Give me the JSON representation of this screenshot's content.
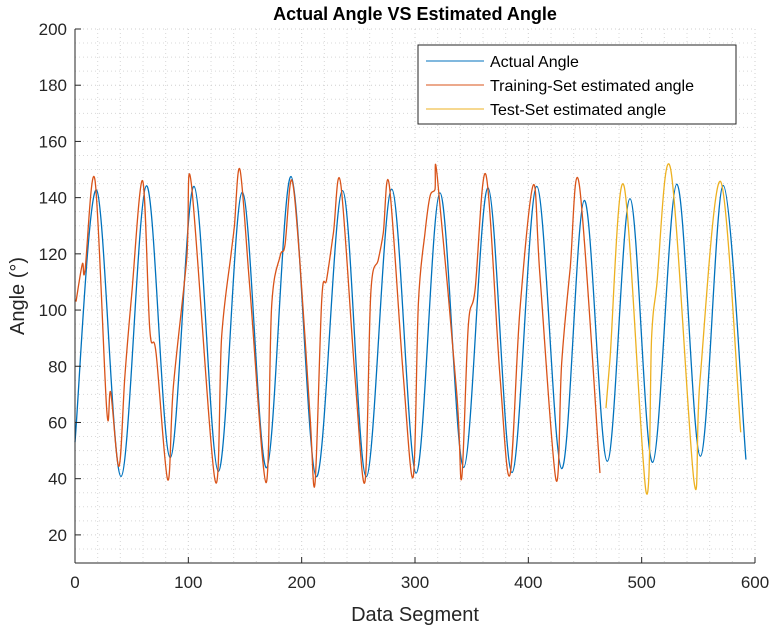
{
  "chart_data": {
    "type": "line",
    "title": "Actual Angle VS Estimated Angle",
    "xlabel": "Data Segment",
    "ylabel": "Angle (°)",
    "xlim": [
      0,
      600
    ],
    "ylim": [
      10,
      200
    ],
    "xticks": [
      0,
      100,
      200,
      300,
      400,
      500,
      600
    ],
    "yticks": [
      20,
      40,
      60,
      80,
      100,
      120,
      140,
      160,
      180,
      200
    ],
    "xtick_labels": [
      "0",
      "100",
      "200",
      "300",
      "400",
      "500",
      "600"
    ],
    "ytick_labels": [
      "20",
      "40",
      "60",
      "80",
      "100",
      "120",
      "140",
      "160",
      "180",
      "200"
    ],
    "grid": "on (major and minor, dotted)",
    "legend_position": "top-right",
    "series": [
      {
        "name": "Actual Angle",
        "color": "#0072BD",
        "x": [
          0,
          19,
          40.6,
          63,
          84,
          105,
          126.5,
          147.6,
          169,
          190.6,
          213,
          236,
          257,
          279.4,
          301,
          322,
          343,
          364.4,
          385.6,
          407.4,
          429.4,
          449.4,
          469.7,
          489.7,
          509.7,
          531,
          551.8,
          572,
          592
        ],
        "y": [
          53,
          142.7,
          40.8,
          144.2,
          47.5,
          144,
          42.6,
          141.9,
          43.9,
          147.5,
          40.7,
          142.5,
          40.7,
          143,
          42,
          141.7,
          44,
          143.5,
          42.2,
          144,
          43.6,
          139,
          46.2,
          139.6,
          45.8,
          144.8,
          48,
          144.3,
          46.8
        ]
      },
      {
        "name": "Training-Set estimated angle",
        "color": "#D95319",
        "x": [
          0.9,
          6.5,
          8.8,
          17.6,
          28,
          31.5,
          38.8,
          44,
          50,
          59.7,
          66,
          71.5,
          81.8,
          86.8,
          98.5,
          102.6,
          123.5,
          129.4,
          137.6,
          140.6,
          145.6,
          154.4,
          168.5,
          173.5,
          180.9,
          185.3,
          191.2,
          198.5,
          207.4,
          211.8,
          217.7,
          222,
          228,
          234.4,
          247,
          255.9,
          261,
          267.6,
          272,
          277.3,
          289.7,
          298.5,
          303,
          308.8,
          313.2,
          317.6,
          319.7,
          336.8,
          341.2,
          347,
          353,
          362.6,
          375,
          383.8,
          392.6,
          404.4,
          410.3,
          424.4,
          429.4,
          436.8,
          445,
          463.2
        ],
        "y": [
          103,
          116.4,
          114,
          146.3,
          64.5,
          70.7,
          44.4,
          76.4,
          105.4,
          146,
          93,
          84.8,
          39.6,
          72.8,
          117.9,
          145.1,
          39.6,
          90.6,
          119.6,
          129.7,
          149.9,
          107.2,
          38.6,
          101.3,
          119.1,
          123.2,
          146.3,
          116.7,
          62.2,
          38.5,
          103.6,
          110.8,
          127.4,
          145.1,
          76.4,
          39,
          106,
          117.9,
          127.4,
          144.5,
          76.4,
          40.8,
          102.5,
          127.4,
          140.4,
          142.8,
          147.3,
          70.5,
          40.2,
          94.2,
          107.2,
          148.1,
          76.4,
          41.4,
          100.1,
          144.5,
          112,
          39.6,
          81,
          114.3,
          144.5,
          42
        ]
      },
      {
        "name": "Test-Set estimated angle",
        "color": "#EDB120",
        "x": [
          468.5,
          472,
          484.4,
          503.8,
          508.8,
          513.2,
          525.6,
          546.2,
          551.5,
          569.7,
          587.4
        ],
        "y": [
          65.1,
          82.3,
          144.2,
          35.5,
          90.6,
          108.4,
          150.1,
          39,
          75.2,
          145.7,
          56.5
        ]
      }
    ]
  }
}
